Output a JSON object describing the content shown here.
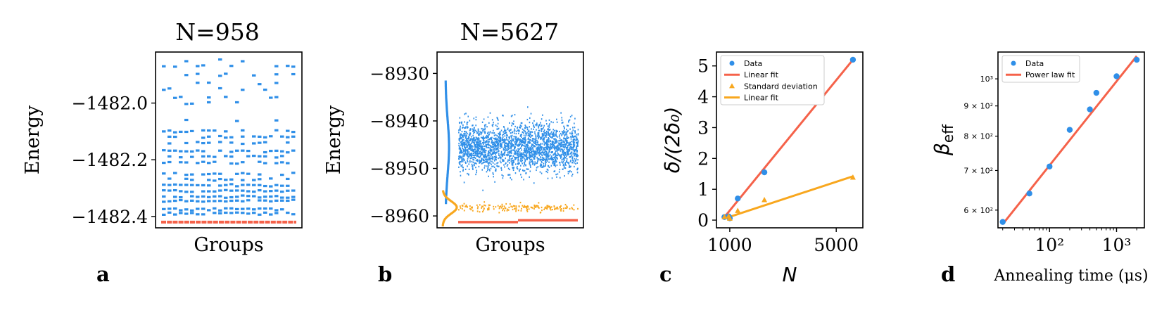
{
  "colors": {
    "blue": "#2f8fe8",
    "red": "#f5624a",
    "orange": "#f8a71e",
    "black": "#000000"
  },
  "chart_data": [
    {
      "id": "a",
      "type": "scatter",
      "panel_label": "a",
      "title": "N=958",
      "xlabel": "Groups",
      "ylabel": "Energy",
      "ylim": [
        -1482.44,
        -1481.82
      ],
      "yticks": [
        -1482.0,
        -1482.2,
        -1482.4
      ],
      "ytick_labels": [
        "−1482.0",
        "−1482.2",
        "−1482.4"
      ],
      "groups": 24,
      "ground_state_energy": -1482.42,
      "level_energies": [
        -1482.39,
        -1482.375,
        -1482.345,
        -1482.33,
        -1482.31,
        -1482.29,
        -1482.27,
        -1482.25,
        -1482.21,
        -1482.19,
        -1482.17,
        -1482.14,
        -1482.12,
        -1482.1,
        -1482.06,
        -1482.0,
        -1481.98,
        -1481.95,
        -1481.93,
        -1481.9,
        -1481.87,
        -1481.85
      ]
    },
    {
      "id": "b",
      "type": "scatter",
      "panel_label": "b",
      "title": "N=5627",
      "xlabel": "Groups",
      "ylabel": "Energy",
      "ylim": [
        -8962.5,
        -8925.5
      ],
      "yticks": [
        -8930,
        -8940,
        -8950,
        -8960
      ],
      "ytick_labels": [
        "−8930",
        "−8940",
        "−8950",
        "−8960"
      ],
      "excited_mean": -8945.5,
      "excited_std": 3.6,
      "low_band_mean": -8958.2,
      "ground_segments": [
        {
          "from": 0,
          "to": 0.5,
          "energy": -8961.3
        },
        {
          "from": 0.5,
          "to": 1,
          "energy": -8960.9
        }
      ]
    },
    {
      "id": "c",
      "type": "scatter",
      "panel_label": "c",
      "xlabel": "N",
      "ylabel": "δ/(2δ₀)",
      "xlim": [
        500,
        6000
      ],
      "ylim": [
        -0.25,
        5.45
      ],
      "xticks": [
        1000,
        5000
      ],
      "yticks": [
        0,
        1,
        2,
        3,
        4,
        5
      ],
      "series": [
        {
          "name": "Data",
          "marker": "circle",
          "color": "blue",
          "x": [
            800,
            958,
            1000,
            1300,
            2300,
            5627
          ],
          "y": [
            0.1,
            0.12,
            0.06,
            0.7,
            1.55,
            5.2
          ]
        },
        {
          "name": "Linear fit",
          "kind": "line",
          "color": "red",
          "x": [
            800,
            5627
          ],
          "y": [
            0.1,
            5.2
          ]
        },
        {
          "name": "Standard deviation",
          "marker": "triangle",
          "color": "orange",
          "x": [
            800,
            958,
            1000,
            1300,
            2300,
            5627
          ],
          "y": [
            0.1,
            0.12,
            0.05,
            0.3,
            0.65,
            1.38
          ]
        },
        {
          "name": "Linear fit",
          "kind": "line",
          "color": "orange",
          "x": [
            800,
            5627
          ],
          "y": [
            0.05,
            1.42
          ]
        }
      ],
      "legend": {
        "position": "top-left",
        "entries": [
          "Data",
          "Linear fit",
          "Standard deviation",
          "Linear fit"
        ]
      }
    },
    {
      "id": "d",
      "type": "scatter",
      "panel_label": "d",
      "xlabel": "Annealing time (μs)",
      "ylabel": "β_eff",
      "xscale": "log",
      "yscale": "log",
      "xlim": [
        17,
        2600
      ],
      "ylim": [
        560,
        1110
      ],
      "xticks": [
        100,
        1000
      ],
      "xtick_labels": [
        "10²",
        "10³"
      ],
      "yticks": [
        600,
        700,
        800,
        900,
        1000
      ],
      "ytick_labels": [
        "6 × 10²",
        "7 × 10²",
        "8 × 10²",
        "9 × 10²",
        "10³"
      ],
      "series": [
        {
          "name": "Data",
          "marker": "circle",
          "color": "blue",
          "x": [
            20,
            50,
            100,
            200,
            400,
            500,
            1000,
            2000
          ],
          "y": [
            573,
            640,
            711,
            820,
            888,
            947,
            1010,
            1077
          ]
        },
        {
          "name": "Power law fit",
          "kind": "line",
          "color": "red",
          "x": [
            20,
            2000
          ],
          "y": [
            568,
            1093
          ]
        }
      ],
      "legend": {
        "position": "top-left",
        "entries": [
          "Data",
          "Power law fit"
        ]
      }
    }
  ]
}
